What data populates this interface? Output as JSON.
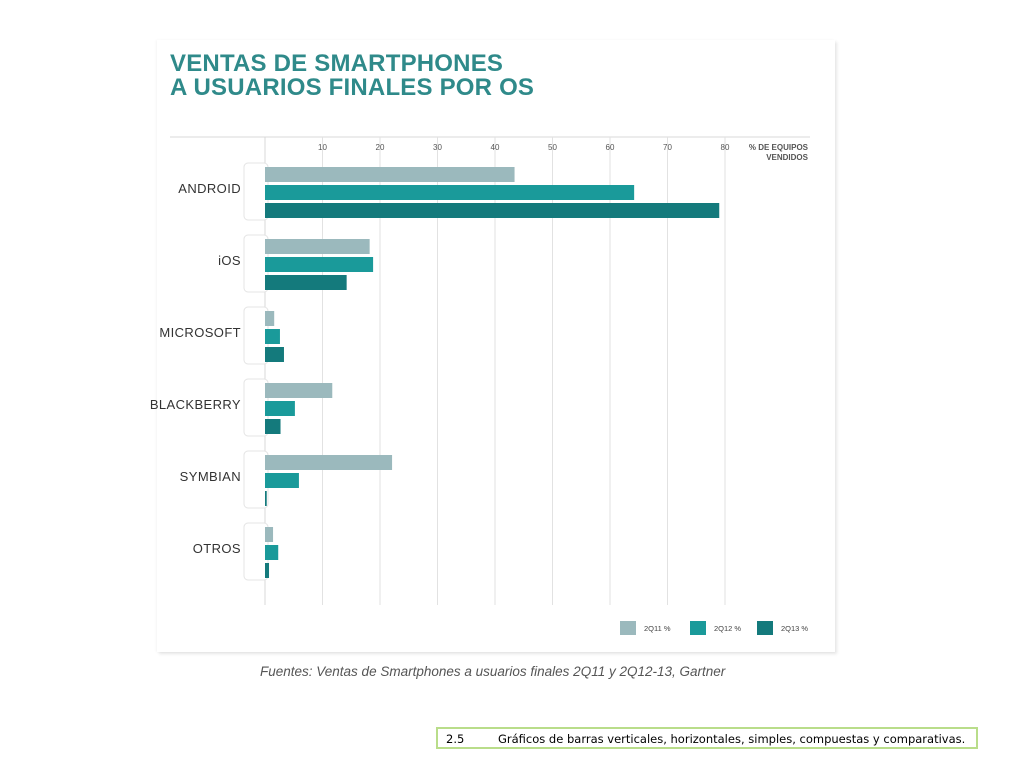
{
  "title": [
    "VENTAS DE SMARTPHONES",
    "A USUARIOS FINALES POR OS"
  ],
  "source": "Fuentes: Ventas de Smartphones a usuarios finales 2Q11 y 2Q12-13, Gartner",
  "caption": {
    "number": "2.5",
    "text": "Gráficos de barras verticales, horizontales, simples, compuestas y comparativas."
  },
  "chart_data": {
    "type": "bar",
    "orientation": "horizontal",
    "categories": [
      "ANDROID",
      "iOS",
      "MICROSOFT",
      "BLACKBERRY",
      "SYMBIAN",
      "OTROS"
    ],
    "series": [
      {
        "name": "2Q11 %",
        "color": "#9bb9bd",
        "values": [
          43.4,
          18.2,
          1.6,
          11.7,
          22.1,
          1.4
        ]
      },
      {
        "name": "2Q12 %",
        "color": "#1a9a9a",
        "values": [
          64.2,
          18.8,
          2.6,
          5.2,
          5.9,
          2.3
        ]
      },
      {
        "name": "2Q13 %",
        "color": "#147a7c",
        "values": [
          79.0,
          14.2,
          3.3,
          2.7,
          0.3,
          0.7
        ]
      }
    ],
    "xticks": [
      10,
      20,
      30,
      40,
      50,
      60,
      70,
      80
    ],
    "xlim": [
      0,
      80
    ],
    "xlabel": [
      "% DE EQUIPOS",
      "VENDIDOS"
    ],
    "grid": true,
    "legend": "bottom-right"
  }
}
